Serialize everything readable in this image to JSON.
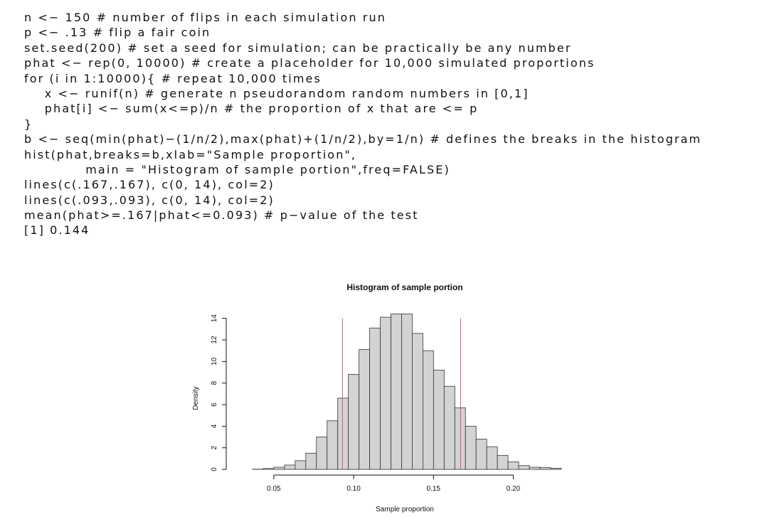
{
  "code": {
    "lines": [
      "n <− 150 # number of flips in each simulation run",
      "p <− .13 # flip a fair coin",
      "set.seed(200) # set a seed for simulation; can be practically be any number",
      "phat <− rep(0, 10000) # create a placeholder for 10,000 simulated proportions",
      "for (i in 1:10000){ # repeat 10,000 times",
      "    x <− runif(n) # generate n pseudorandom random numbers in [0,1]",
      "    phat[i] <− sum(x<=p)/n # the proportion of x that are <= p",
      "}",
      "b <− seq(min(phat)−(1/n/2),max(phat)+(1/n/2),by=1/n) # defines the breaks in the histogram",
      "hist(phat,breaks=b,xlab=\"Sample proportion\",",
      "            main = \"Histogram of sample portion\",freq=FALSE)",
      "lines(c(.167,.167), c(0, 14), col=2)",
      "lines(c(.093,.093), c(0, 14), col=2)",
      "mean(phat>=.167|phat<=0.093) # p−value of the test",
      "[1] 0.144"
    ]
  },
  "chart_data": {
    "type": "bar",
    "title": "Histogram of sample portion",
    "xlabel": "Sample proportion",
    "ylabel": "Density",
    "xlim": [
      0.03,
      0.235
    ],
    "ylim": [
      0,
      14.5
    ],
    "xticks": [
      0.05,
      0.1,
      0.15,
      0.2
    ],
    "xtick_labels": [
      "0.05",
      "0.10",
      "0.15",
      "0.20"
    ],
    "yticks": [
      0,
      2,
      4,
      6,
      8,
      10,
      12,
      14
    ],
    "bin_width": 0.006667,
    "bin_start": 0.0367,
    "densities": [
      0.02,
      0.08,
      0.2,
      0.4,
      0.8,
      1.5,
      3.0,
      4.5,
      6.6,
      8.8,
      11.1,
      13.1,
      14.1,
      14.4,
      14.4,
      12.6,
      11.0,
      9.2,
      7.7,
      5.7,
      4.0,
      2.8,
      2.1,
      1.3,
      0.7,
      0.35,
      0.2,
      0.18,
      0.1
    ],
    "bar_fill": "#d3d3d3",
    "bar_stroke": "#333333",
    "vlines": [
      {
        "x": 0.093,
        "y0": 0,
        "y1": 14,
        "color": "#df536b"
      },
      {
        "x": 0.167,
        "y0": 0,
        "y1": 14,
        "color": "#df536b"
      }
    ]
  }
}
